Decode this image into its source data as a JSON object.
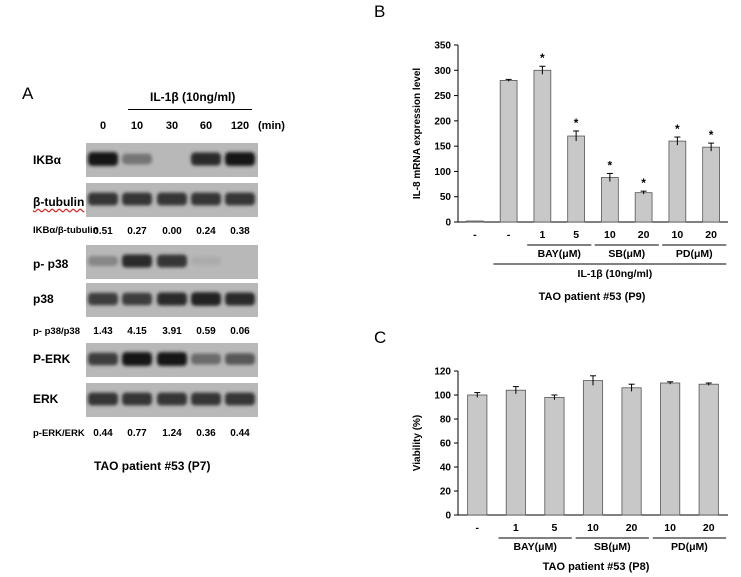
{
  "panelA": {
    "letter": "A",
    "treatment_label": "IL-1β (10ng/ml)",
    "unit": "(min)",
    "lanes": [
      "0",
      "10",
      "30",
      "60",
      "120"
    ],
    "blots": [
      {
        "label": "IKBα",
        "intensity": [
          0.95,
          0.45,
          0.0,
          0.85,
          0.95
        ]
      },
      {
        "label": "β-tubulin",
        "intensity": [
          0.8,
          0.8,
          0.8,
          0.8,
          0.8
        ]
      },
      {
        "label": "p- p38",
        "intensity": [
          0.35,
          0.85,
          0.8,
          0.15,
          0.02
        ]
      },
      {
        "label": "p38",
        "intensity": [
          0.75,
          0.75,
          0.85,
          0.9,
          0.85
        ]
      },
      {
        "label": "P-ERK",
        "intensity": [
          0.75,
          0.95,
          0.95,
          0.5,
          0.6
        ]
      },
      {
        "label": "ERK",
        "intensity": [
          0.8,
          0.8,
          0.8,
          0.8,
          0.8
        ]
      }
    ],
    "ratios": [
      {
        "label": "IKBα/β-tubulin",
        "values": [
          "0.51",
          "0.27",
          "0.00",
          "0.24",
          "0.38"
        ]
      },
      {
        "label": "p- p38/p38",
        "values": [
          "1.43",
          "4.15",
          "3.91",
          "0.59",
          "0.06"
        ]
      },
      {
        "label": "p-ERK/ERK",
        "values": [
          "0.44",
          "0.77",
          "1.24",
          "0.36",
          "0.44"
        ]
      }
    ],
    "caption": "TAO patient #53 (P7)"
  },
  "chart_data": [
    {
      "panel": "B",
      "type": "bar",
      "categories": [
        "-",
        "-",
        "1",
        "5",
        "10",
        "20",
        "10",
        "20"
      ],
      "values": [
        0,
        280,
        300,
        170,
        88,
        58,
        160,
        148
      ],
      "errors": [
        0,
        2,
        8,
        10,
        8,
        3,
        8,
        8
      ],
      "significant": [
        false,
        false,
        true,
        true,
        true,
        true,
        true,
        true
      ],
      "ylabel": "IL-8 mRNA  expression level",
      "ylim": [
        0,
        350
      ],
      "yticks": [
        0,
        50,
        100,
        150,
        200,
        250,
        300,
        350
      ],
      "groups": [
        {
          "label": "BAY(μM)",
          "from": 2,
          "to": 3
        },
        {
          "label": "SB(μM)",
          "from": 4,
          "to": 5
        },
        {
          "label": "PD(μM)",
          "from": 6,
          "to": 7
        }
      ],
      "treatment_label": "IL-1β (10ng/ml)",
      "caption": "TAO patient #53 (P9)",
      "star": "*",
      "grid": false
    },
    {
      "panel": "C",
      "type": "bar",
      "categories": [
        "-",
        "1",
        "5",
        "10",
        "20",
        "10",
        "20"
      ],
      "values": [
        100,
        104,
        98,
        112,
        106,
        110,
        109
      ],
      "errors": [
        2,
        3,
        2,
        4,
        3,
        1,
        1
      ],
      "ylabel": "Viability (%)",
      "ylim": [
        0,
        120
      ],
      "yticks": [
        0,
        20,
        40,
        60,
        80,
        100,
        120
      ],
      "groups": [
        {
          "label": "BAY(μM)",
          "from": 1,
          "to": 2
        },
        {
          "label": "SB(μM)",
          "from": 3,
          "to": 4
        },
        {
          "label": "PD(μM)",
          "from": 5,
          "to": 6
        }
      ],
      "caption": "TAO patient #53 (P8)",
      "grid": false
    }
  ],
  "panel_letters": {
    "B": "B",
    "C": "C"
  }
}
